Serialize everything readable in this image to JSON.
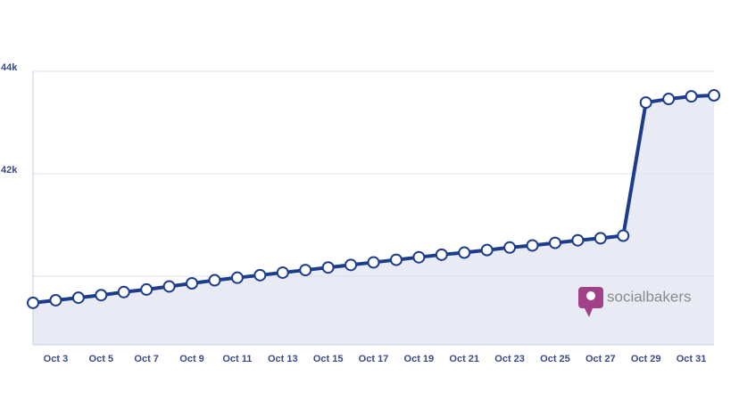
{
  "chart_data": {
    "type": "line",
    "categories": [
      null,
      "Oct 3",
      null,
      "Oct 5",
      null,
      "Oct 7",
      null,
      "Oct 9",
      null,
      "Oct 11",
      null,
      "Oct 13",
      null,
      "Oct 15",
      null,
      "Oct 17",
      null,
      "Oct 19",
      null,
      "Oct 21",
      null,
      "Oct 23",
      null,
      "Oct 25",
      null,
      "Oct 27",
      null,
      "Oct 29",
      null,
      "Oct 31",
      null
    ],
    "series": [
      {
        "color": "#1d3c8c",
        "values": [
          39480,
          39530,
          39580,
          39630,
          39690,
          39740,
          39800,
          39860,
          39920,
          39970,
          40020,
          40070,
          40120,
          40170,
          40220,
          40270,
          40320,
          40370,
          40420,
          40460,
          40510,
          40560,
          40600,
          40650,
          40700,
          40740,
          40790,
          43390,
          43460,
          43510,
          43530
        ]
      }
    ],
    "ylim": [
      38660,
      44000
    ],
    "yticks": [
      {
        "value": 40000,
        "label": null
      },
      {
        "value": 42000,
        "label": "42k"
      },
      {
        "value": 44000,
        "label": "44k"
      }
    ],
    "grid": true,
    "area_color": "#e9ebf4",
    "watermark": "socialbakers"
  }
}
